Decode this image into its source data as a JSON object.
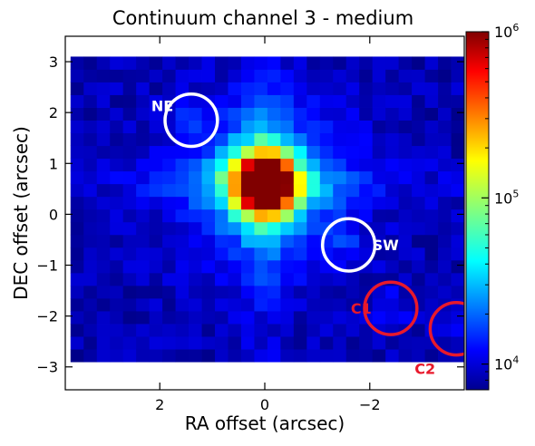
{
  "chart_data": {
    "type": "heatmap",
    "title": "Continuum channel 3 - medium",
    "xlabel": "RA offset (arcsec)",
    "ylabel": "DEC offset (arcsec)",
    "xlim": [
      3.8,
      -3.8
    ],
    "ylim": [
      -3.45,
      3.5
    ],
    "x_ticks": [
      2,
      0,
      -2
    ],
    "x_tick_labels": [
      "2",
      "0",
      "−2"
    ],
    "y_ticks": [
      3,
      2,
      1,
      0,
      -1,
      -2,
      -3
    ],
    "y_tick_labels": [
      "3",
      "2",
      "1",
      "0",
      "−1",
      "−2",
      "−3"
    ],
    "colorbar": {
      "colormap": "jet",
      "scale": "log",
      "range": [
        7000,
        1000000
      ],
      "ticks": [
        10000,
        100000,
        1000000
      ],
      "tick_labels": [
        {
          "base": "10",
          "exp": "4"
        },
        {
          "base": "10",
          "exp": "5"
        },
        {
          "base": "10",
          "exp": "6"
        }
      ]
    },
    "map": {
      "x_range": [
        3.7,
        -3.7
      ],
      "y_range": [
        -2.9,
        3.1
      ],
      "peak_position": [
        0.0,
        0.6
      ],
      "peak_value": 1000000,
      "background_value": 9000
    },
    "regions": [
      {
        "label": "NE",
        "x": 1.4,
        "y": 1.85,
        "radius": 0.5,
        "color": "#ffffff"
      },
      {
        "label": "SW",
        "x": -1.6,
        "y": -0.6,
        "radius": 0.5,
        "color": "#ffffff"
      },
      {
        "label": "C1",
        "x": -2.4,
        "y": -1.85,
        "radius": 0.5,
        "color": "#e8192c"
      },
      {
        "label": "C2",
        "x": -3.65,
        "y": -2.25,
        "radius": 0.5,
        "color": "#e8192c"
      }
    ]
  }
}
